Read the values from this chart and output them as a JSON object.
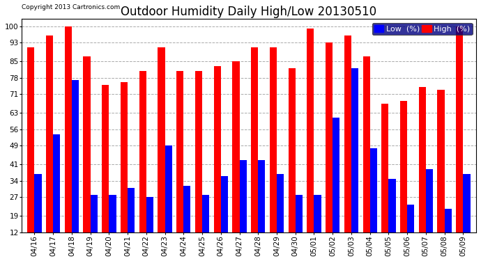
{
  "title": "Outdoor Humidity Daily High/Low 20130510",
  "copyright": "Copyright 2013 Cartronics.com",
  "dates": [
    "04/16",
    "04/17",
    "04/18",
    "04/19",
    "04/20",
    "04/21",
    "04/22",
    "04/23",
    "04/24",
    "04/25",
    "04/26",
    "04/27",
    "04/28",
    "04/29",
    "04/30",
    "05/01",
    "05/02",
    "05/03",
    "05/04",
    "05/05",
    "05/06",
    "05/07",
    "05/08",
    "05/09"
  ],
  "high": [
    91,
    96,
    100,
    87,
    75,
    76,
    81,
    91,
    81,
    81,
    83,
    85,
    91,
    91,
    82,
    99,
    93,
    96,
    87,
    67,
    68,
    74,
    73,
    100
  ],
  "low": [
    37,
    54,
    77,
    28,
    28,
    31,
    27,
    49,
    32,
    28,
    36,
    43,
    43,
    37,
    28,
    28,
    61,
    82,
    48,
    35,
    24,
    39,
    22,
    37
  ],
  "y_ticks": [
    12,
    19,
    27,
    34,
    41,
    49,
    56,
    63,
    71,
    78,
    85,
    93,
    100
  ],
  "ylim_min": 12,
  "ylim_max": 103,
  "bar_width": 0.38,
  "high_color": "#ff0000",
  "low_color": "#0000ff",
  "bg_color": "#ffffff",
  "grid_color": "#aaaaaa",
  "title_fontsize": 12,
  "tick_fontsize": 7.5,
  "legend_fontsize": 8,
  "legend_low_label": "Low  (%)",
  "legend_high_label": "High  (%)"
}
